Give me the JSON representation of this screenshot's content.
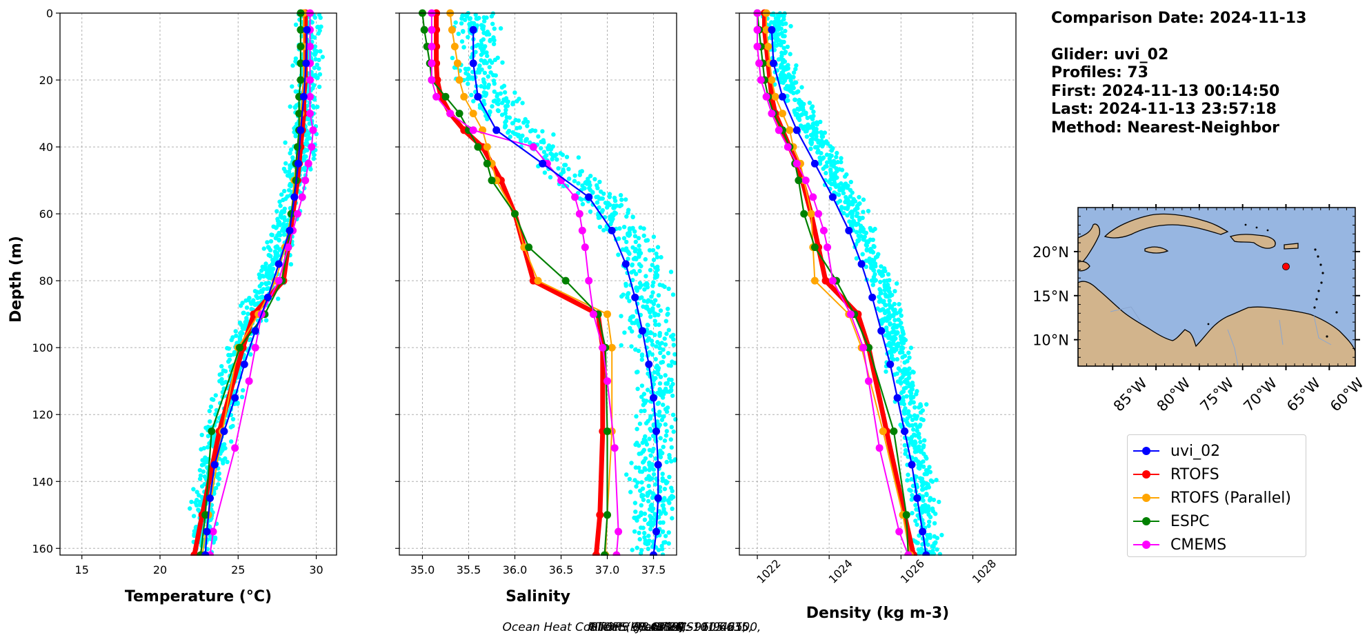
{
  "info": {
    "comparison_date": "Comparison Date: 2024-11-13",
    "glider": "Glider: uvi_02",
    "profiles": "Profiles: 73",
    "first": "First: 2024-11-13 00:14:50",
    "last": "Last: 2024-11-13 23:57:18",
    "method": "Method: Nearest-Neighbor"
  },
  "footer": {
    "prefix": "Ocean Heat Content (kJ/cm^2) - ",
    "glider": "Glider: 98.4219,",
    "rtofs": "RTOFS: 98.8776,",
    "rtofs_parallel": "RTOFS (Parallel): 101.6635,",
    "espc": "ESPC: 96.9465,",
    "cmems": "CMEMS: 105.2100,"
  },
  "legend": [
    {
      "label": "uvi_02",
      "color": "#0000ff"
    },
    {
      "label": "RTOFS",
      "color": "#ff0000"
    },
    {
      "label": "RTOFS (Parallel)",
      "color": "#ffa500"
    },
    {
      "label": "ESPC",
      "color": "#008000"
    },
    {
      "label": "CMEMS",
      "color": "#ff00ff"
    }
  ],
  "colors": {
    "glider_cloud": "#00ffff",
    "land": "#d2b48c",
    "ocean": "#97b6e1"
  },
  "chart_data": [
    {
      "type": "line",
      "xlabel": "Temperature (°C)",
      "ylabel": "Depth (m)",
      "xlim": [
        13.6,
        31.3
      ],
      "ylim": [
        162,
        0
      ],
      "xticks": [
        15,
        20,
        25,
        30
      ],
      "yticks": [
        0,
        20,
        40,
        60,
        80,
        100,
        120,
        140,
        160
      ],
      "grid": true,
      "cloud": {
        "name": "uvi_02 profiles",
        "mean": [
          29.6,
          29.5,
          29.4,
          29.2,
          29.0,
          28.7,
          28.0,
          27.6,
          27.0,
          26.0,
          25.0,
          24.6,
          24.0,
          23.5,
          23.1,
          22.8,
          22.7
        ],
        "depths": [
          0,
          10,
          20,
          30,
          40,
          50,
          60,
          70,
          80,
          90,
          100,
          110,
          120,
          130,
          140,
          150,
          160
        ],
        "spread": 0.7
      },
      "series": [
        {
          "name": "uvi_02",
          "depths": [
            5,
            15,
            25,
            35,
            45,
            55,
            65,
            75,
            85,
            95,
            105,
            115,
            125,
            135,
            145,
            155,
            162
          ],
          "values": [
            29.4,
            29.35,
            29.2,
            29.0,
            28.85,
            28.6,
            28.3,
            27.6,
            26.9,
            26.1,
            25.4,
            24.8,
            24.1,
            23.5,
            23.2,
            23.0,
            22.9
          ]
        },
        {
          "name": "RTOFS",
          "depths": [
            0,
            5,
            10,
            15,
            20,
            25,
            30,
            35,
            40,
            45,
            50,
            60,
            70,
            80,
            90,
            100,
            125,
            150,
            162
          ],
          "values": [
            29.3,
            29.3,
            29.3,
            29.3,
            29.3,
            29.2,
            29.2,
            29.1,
            29.0,
            28.9,
            28.8,
            28.5,
            28.2,
            27.9,
            26.0,
            25.3,
            23.8,
            22.7,
            22.2
          ]
        },
        {
          "name": "RTOFS (Parallel)",
          "depths": [
            0,
            5,
            10,
            15,
            20,
            25,
            30,
            35,
            40,
            45,
            50,
            60,
            70,
            80,
            90,
            100,
            125,
            150,
            162
          ],
          "values": [
            29.2,
            29.2,
            29.2,
            29.2,
            29.2,
            29.1,
            29.0,
            28.9,
            28.8,
            28.7,
            28.6,
            28.4,
            28.0,
            27.4,
            26.3,
            25.0,
            24.0,
            23.1,
            22.7
          ]
        },
        {
          "name": "ESPC",
          "depths": [
            0,
            5,
            10,
            15,
            20,
            25,
            30,
            35,
            40,
            45,
            50,
            60,
            70,
            80,
            90,
            100,
            125,
            150,
            162
          ],
          "values": [
            29.0,
            29.0,
            29.0,
            29.0,
            29.0,
            28.9,
            28.9,
            28.9,
            28.8,
            28.7,
            28.7,
            28.4,
            28.2,
            27.8,
            26.7,
            25.1,
            23.3,
            22.9,
            22.6
          ]
        },
        {
          "name": "CMEMS",
          "depths": [
            0,
            5,
            10,
            15,
            20,
            25,
            30,
            35,
            40,
            45,
            50,
            55,
            60,
            65,
            70,
            80,
            90,
            100,
            110,
            130,
            155,
            162
          ],
          "values": [
            29.6,
            29.6,
            29.6,
            29.6,
            29.6,
            29.6,
            29.6,
            29.8,
            29.7,
            29.5,
            29.3,
            29.1,
            28.8,
            28.5,
            28.2,
            27.6,
            26.5,
            26.1,
            25.7,
            24.8,
            23.4,
            23.2
          ]
        }
      ]
    },
    {
      "type": "line",
      "xlabel": "Salinity",
      "xlim": [
        34.75,
        37.75
      ],
      "ylim": [
        162,
        0
      ],
      "xticks": [
        35.0,
        35.5,
        36.0,
        36.5,
        37.0,
        37.5
      ],
      "yticks": [
        0,
        20,
        40,
        60,
        80,
        100,
        120,
        140,
        160
      ],
      "grid": true,
      "cloud": {
        "name": "uvi_02 profiles",
        "mean": [
          35.6,
          35.6,
          35.65,
          35.85,
          36.3,
          36.7,
          37.05,
          37.3,
          37.4,
          37.45,
          37.5,
          37.55,
          37.55,
          37.55,
          37.55,
          37.5,
          37.5
        ],
        "depths": [
          0,
          10,
          20,
          30,
          40,
          50,
          60,
          70,
          80,
          90,
          100,
          110,
          120,
          130,
          140,
          150,
          160
        ],
        "spread": 0.22
      },
      "series": [
        {
          "name": "uvi_02",
          "depths": [
            5,
            15,
            25,
            35,
            45,
            55,
            65,
            75,
            85,
            95,
            105,
            115,
            125,
            135,
            145,
            155,
            162
          ],
          "values": [
            35.55,
            35.55,
            35.6,
            35.8,
            36.3,
            36.8,
            37.05,
            37.2,
            37.3,
            37.38,
            37.45,
            37.5,
            37.53,
            37.55,
            37.55,
            37.53,
            37.5
          ]
        },
        {
          "name": "RTOFS",
          "depths": [
            0,
            5,
            10,
            15,
            20,
            25,
            30,
            35,
            40,
            45,
            50,
            60,
            70,
            80,
            90,
            100,
            125,
            150,
            162
          ],
          "values": [
            35.15,
            35.15,
            35.15,
            35.15,
            35.16,
            35.2,
            35.3,
            35.45,
            35.65,
            35.75,
            35.85,
            36.0,
            36.1,
            36.2,
            36.9,
            36.95,
            36.95,
            36.92,
            36.88
          ]
        },
        {
          "name": "RTOFS (Parallel)",
          "depths": [
            0,
            5,
            10,
            15,
            20,
            25,
            30,
            35,
            40,
            45,
            50,
            60,
            70,
            80,
            90,
            100,
            125,
            150,
            162
          ],
          "values": [
            35.3,
            35.32,
            35.35,
            35.38,
            35.4,
            35.45,
            35.55,
            35.65,
            35.7,
            35.75,
            35.8,
            36.0,
            36.1,
            36.25,
            37.0,
            37.05,
            37.05,
            37.0,
            36.98
          ]
        },
        {
          "name": "ESPC",
          "depths": [
            0,
            5,
            10,
            15,
            20,
            25,
            30,
            35,
            40,
            45,
            50,
            60,
            70,
            80,
            90,
            100,
            125,
            150,
            162
          ],
          "values": [
            35.0,
            35.02,
            35.05,
            35.08,
            35.1,
            35.25,
            35.4,
            35.5,
            35.6,
            35.7,
            35.75,
            36.0,
            36.15,
            36.55,
            36.9,
            36.98,
            37.0,
            37.0,
            36.97
          ]
        },
        {
          "name": "CMEMS",
          "depths": [
            0,
            5,
            10,
            15,
            20,
            25,
            30,
            35,
            40,
            45,
            50,
            55,
            60,
            65,
            70,
            80,
            90,
            100,
            110,
            130,
            155,
            162
          ],
          "values": [
            35.1,
            35.1,
            35.1,
            35.1,
            35.1,
            35.15,
            35.3,
            35.55,
            36.2,
            36.35,
            36.5,
            36.65,
            36.7,
            36.73,
            36.76,
            36.8,
            36.85,
            36.95,
            37.0,
            37.08,
            37.12,
            37.1
          ]
        }
      ]
    },
    {
      "type": "line",
      "xlabel": "Density (kg m-3)",
      "xlim": [
        1021.5,
        1029.2
      ],
      "ylim": [
        162,
        0
      ],
      "xticks": [
        1022,
        1024,
        1026,
        1028
      ],
      "yticks": [
        0,
        20,
        40,
        60,
        80,
        100,
        120,
        140,
        160
      ],
      "grid": true,
      "cloud": {
        "name": "uvi_02 profiles",
        "mean": [
          1022.5,
          1022.5,
          1022.8,
          1023.3,
          1023.8,
          1024.2,
          1024.7,
          1025.1,
          1025.4,
          1025.7,
          1025.9,
          1026.1,
          1026.3,
          1026.45,
          1026.55,
          1026.65,
          1026.75
        ],
        "depths": [
          0,
          10,
          20,
          30,
          40,
          50,
          60,
          70,
          80,
          90,
          100,
          110,
          120,
          130,
          140,
          150,
          160
        ],
        "spread": 0.3
      },
      "series": [
        {
          "name": "uvi_02",
          "depths": [
            5,
            15,
            25,
            35,
            45,
            55,
            65,
            75,
            85,
            95,
            105,
            115,
            125,
            135,
            145,
            155,
            162
          ],
          "values": [
            1022.4,
            1022.45,
            1022.7,
            1023.1,
            1023.6,
            1024.1,
            1024.55,
            1024.9,
            1025.2,
            1025.45,
            1025.7,
            1025.9,
            1026.1,
            1026.3,
            1026.45,
            1026.6,
            1026.7
          ]
        },
        {
          "name": "RTOFS",
          "depths": [
            0,
            5,
            10,
            15,
            20,
            25,
            30,
            35,
            40,
            45,
            50,
            60,
            70,
            80,
            90,
            100,
            125,
            150,
            162
          ],
          "values": [
            1022.2,
            1022.2,
            1022.25,
            1022.3,
            1022.35,
            1022.4,
            1022.5,
            1022.7,
            1022.9,
            1023.1,
            1023.25,
            1023.5,
            1023.7,
            1023.9,
            1024.8,
            1025.1,
            1025.6,
            1026.1,
            1026.35
          ]
        },
        {
          "name": "RTOFS (Parallel)",
          "depths": [
            0,
            5,
            10,
            15,
            20,
            25,
            30,
            35,
            40,
            45,
            50,
            60,
            70,
            80,
            90,
            100,
            125,
            150,
            162
          ],
          "values": [
            1022.25,
            1022.25,
            1022.3,
            1022.35,
            1022.4,
            1022.5,
            1022.7,
            1022.9,
            1023.0,
            1023.2,
            1023.3,
            1023.5,
            1023.55,
            1023.6,
            1024.55,
            1024.9,
            1025.5,
            1026.05,
            1026.25
          ]
        },
        {
          "name": "ESPC",
          "depths": [
            0,
            5,
            10,
            15,
            20,
            25,
            30,
            35,
            40,
            45,
            50,
            60,
            70,
            80,
            90,
            100,
            125,
            150,
            162
          ],
          "values": [
            1022.0,
            1022.05,
            1022.1,
            1022.15,
            1022.2,
            1022.3,
            1022.45,
            1022.7,
            1022.9,
            1023.05,
            1023.15,
            1023.3,
            1023.6,
            1024.2,
            1024.7,
            1025.1,
            1025.8,
            1026.15,
            1026.2
          ]
        },
        {
          "name": "CMEMS",
          "depths": [
            0,
            5,
            10,
            15,
            20,
            25,
            30,
            35,
            40,
            45,
            50,
            55,
            60,
            65,
            70,
            80,
            90,
            100,
            110,
            130,
            155,
            162
          ],
          "values": [
            1022.0,
            1022.0,
            1022.0,
            1022.05,
            1022.1,
            1022.25,
            1022.4,
            1022.6,
            1022.85,
            1023.1,
            1023.35,
            1023.55,
            1023.7,
            1023.85,
            1023.95,
            1024.1,
            1024.6,
            1024.95,
            1025.1,
            1025.4,
            1025.95,
            1026.2
          ]
        }
      ]
    }
  ],
  "map": {
    "lat_ticks": [
      "20°N",
      "15°N",
      "10°N"
    ],
    "lon_ticks": [
      "85°W",
      "80°W",
      "75°W",
      "70°W",
      "65°W",
      "60°W"
    ],
    "lon_range": [
      -89,
      -57
    ],
    "lat_range": [
      7,
      25
    ],
    "glider_lon": -65.0,
    "glider_lat": 18.3
  }
}
